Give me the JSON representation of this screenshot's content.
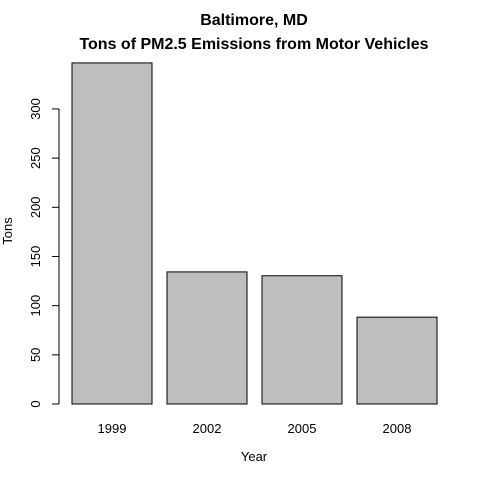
{
  "chart_data": {
    "type": "bar",
    "title": "Baltimore, MD",
    "subtitle": "Tons of PM2.5 Emissions from Motor Vehicles",
    "xlabel": "Year",
    "ylabel": "Tons",
    "categories": [
      "1999",
      "2002",
      "2005",
      "2008"
    ],
    "values": [
      346.8,
      134.3,
      130.4,
      88.3
    ],
    "yticks": [
      0,
      50,
      100,
      150,
      200,
      250,
      300
    ],
    "ylim": [
      0,
      364
    ],
    "grid": false,
    "bar_color": "#bebebe",
    "border_color": "#000000"
  }
}
